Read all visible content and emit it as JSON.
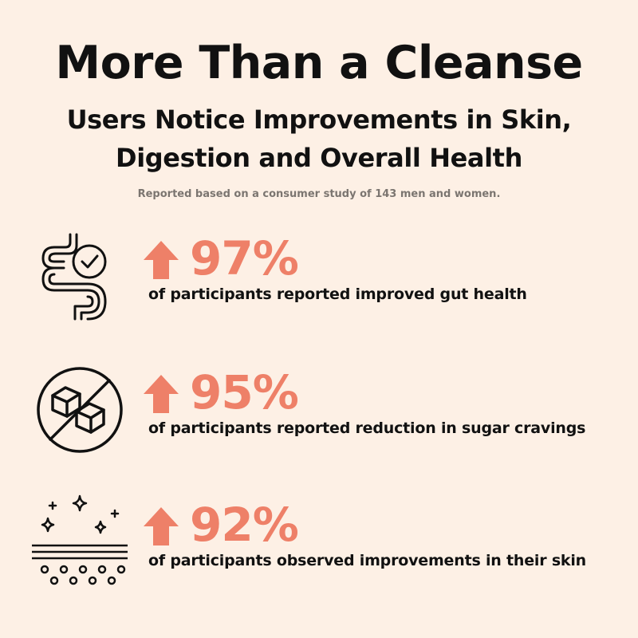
{
  "header": {
    "title": "More Than a Cleanse",
    "subtitle_line1": "Users Notice Improvements in Skin,",
    "subtitle_line2": "Digestion and Overall Health",
    "note": "Reported based on a consumer study of 143 men and women."
  },
  "colors": {
    "background": "#FDF0E5",
    "accent": "#EE8068",
    "text": "#111111",
    "note": "#7B7570"
  },
  "stats": [
    {
      "icon": "gut-health-icon",
      "percent": "97%",
      "description": "of participants reported improved gut health"
    },
    {
      "icon": "no-sugar-icon",
      "percent": "95%",
      "description": "of participants reported reduction in sugar cravings"
    },
    {
      "icon": "skin-sparkle-icon",
      "percent": "92%",
      "description": "of participants observed improvements in their skin"
    }
  ]
}
